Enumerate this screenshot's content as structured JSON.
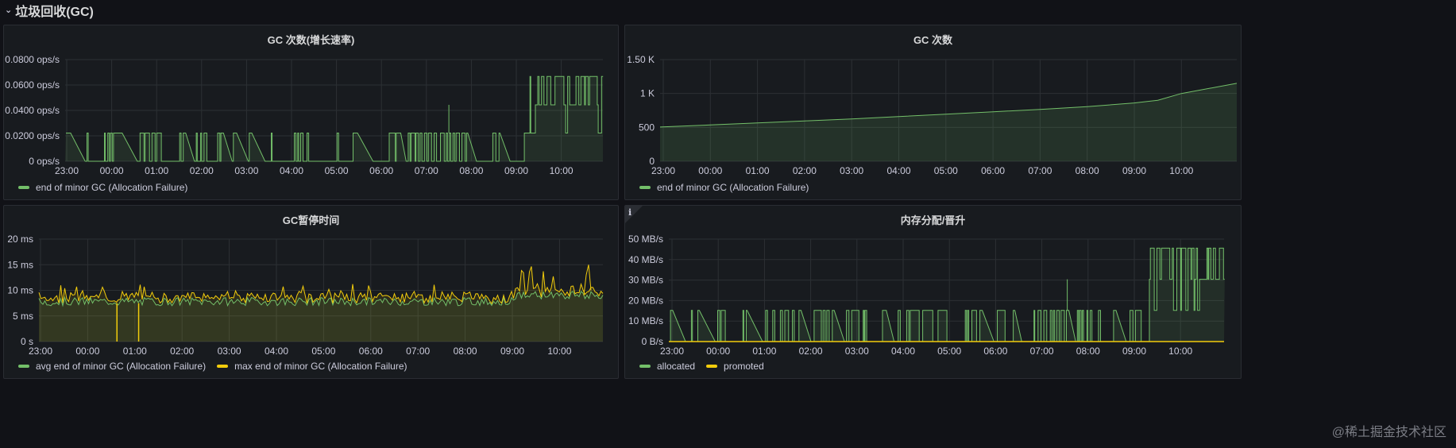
{
  "row": {
    "chevron": "⌄",
    "title": "垃圾回收(GC)"
  },
  "watermark": "@稀土掘金技术社区",
  "colors": {
    "green": "#73bf69",
    "yellow": "#f2cc0c",
    "grid": "#2c3034",
    "axisText": "#ccccdc"
  },
  "panels": [
    {
      "id": "gc-rate",
      "title": "GC 次数(增长速率)",
      "legend": [
        {
          "label": "end of minor GC (Allocation Failure)",
          "color": "#73bf69"
        }
      ],
      "chart_data": {
        "type": "line",
        "x_ticks": [
          "23:00",
          "00:00",
          "01:00",
          "02:00",
          "03:00",
          "04:00",
          "05:00",
          "06:00",
          "07:00",
          "08:00",
          "09:00",
          "10:00"
        ],
        "y_ticks": [
          "0 ops/s",
          "0.0200 ops/s",
          "0.0400 ops/s",
          "0.0600 ops/s",
          "0.0800 ops/s"
        ],
        "ylim": [
          0,
          0.08
        ],
        "series": [
          {
            "name": "end of minor GC (Allocation Failure)",
            "pattern": "square-wave",
            "low": 0,
            "high": 0.0222,
            "late_high": 0.0667,
            "late_mid": 0.0444
          }
        ]
      }
    },
    {
      "id": "gc-count",
      "title": "GC 次数",
      "legend": [
        {
          "label": "end of minor GC (Allocation Failure)",
          "color": "#73bf69"
        }
      ],
      "chart_data": {
        "type": "area",
        "x_ticks": [
          "23:00",
          "00:00",
          "01:00",
          "02:00",
          "03:00",
          "04:00",
          "05:00",
          "06:00",
          "07:00",
          "08:00",
          "09:00",
          "10:00"
        ],
        "y_ticks": [
          "0",
          "500",
          "1 K",
          "1.50 K"
        ],
        "ylim": [
          0,
          1500
        ],
        "series": [
          {
            "name": "end of minor GC (Allocation Failure)",
            "points": [
              [
                23,
                505
              ],
              [
                0,
                535
              ],
              [
                1,
                565
              ],
              [
                2,
                595
              ],
              [
                3,
                625
              ],
              [
                4,
                660
              ],
              [
                5,
                695
              ],
              [
                6,
                730
              ],
              [
                7,
                765
              ],
              [
                8,
                805
              ],
              [
                9,
                860
              ],
              [
                9.5,
                900
              ],
              [
                10,
                1000
              ],
              [
                10.9,
                1150
              ]
            ]
          }
        ]
      }
    },
    {
      "id": "gc-pause",
      "title": "GC暂停时间",
      "legend": [
        {
          "label": "avg end of minor GC (Allocation Failure)",
          "color": "#73bf69"
        },
        {
          "label": "max end of minor GC (Allocation Failure)",
          "color": "#f2cc0c"
        }
      ],
      "chart_data": {
        "type": "line",
        "x_ticks": [
          "23:00",
          "00:00",
          "01:00",
          "02:00",
          "03:00",
          "04:00",
          "05:00",
          "06:00",
          "07:00",
          "08:00",
          "09:00",
          "10:00"
        ],
        "y_ticks": [
          "0 s",
          "5 ms",
          "10 ms",
          "15 ms",
          "20 ms"
        ],
        "ylim": [
          0,
          20
        ],
        "series": [
          {
            "name": "avg end of minor GC (Allocation Failure)",
            "baseline": 7.5
          },
          {
            "name": "max end of minor GC (Allocation Failure)",
            "baseline": 8,
            "peak": 15
          }
        ]
      }
    },
    {
      "id": "mem-alloc",
      "title": "内存分配/晋升",
      "info_icon": "i",
      "legend": [
        {
          "label": "allocated",
          "color": "#73bf69"
        },
        {
          "label": "promoted",
          "color": "#f2cc0c"
        }
      ],
      "chart_data": {
        "type": "line",
        "x_ticks": [
          "23:00",
          "00:00",
          "01:00",
          "02:00",
          "03:00",
          "04:00",
          "05:00",
          "06:00",
          "07:00",
          "08:00",
          "09:00",
          "10:00"
        ],
        "y_ticks": [
          "0 B/s",
          "10 MB/s",
          "20 MB/s",
          "30 MB/s",
          "40 MB/s",
          "50 MB/s"
        ],
        "ylim": [
          0,
          50
        ],
        "series": [
          {
            "name": "allocated",
            "low": 0,
            "high": 15.2,
            "late_mid": 30.4,
            "late_high": 45.6
          },
          {
            "name": "promoted",
            "value": 0
          }
        ]
      }
    }
  ]
}
